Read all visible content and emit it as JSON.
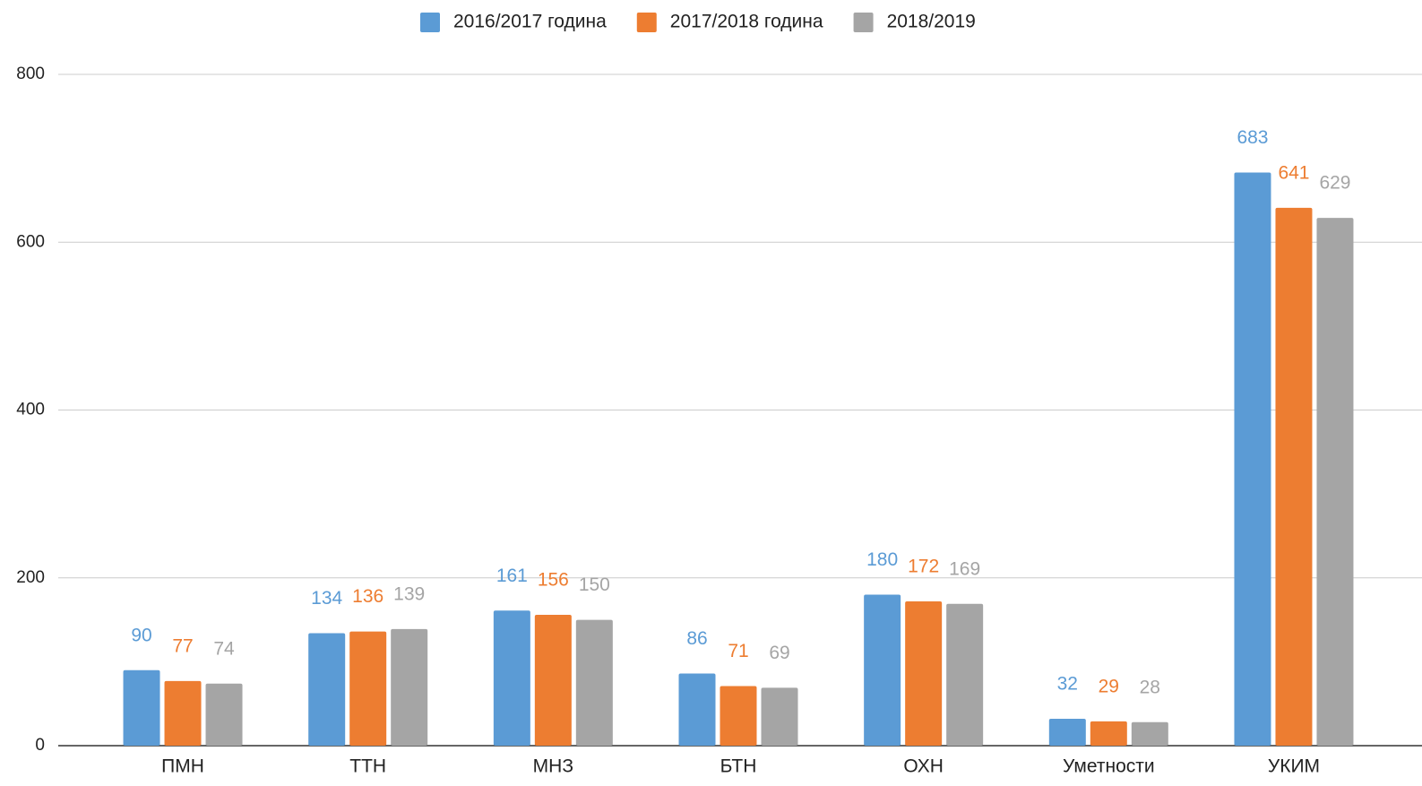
{
  "chart_data": {
    "type": "bar",
    "categories": [
      "ПМН",
      "ТТН",
      "МНЗ",
      "БТН",
      "ОХН",
      "Уметности",
      "УКИМ"
    ],
    "series": [
      {
        "name": "2016/2017 година",
        "color": "#5b9bd5",
        "values": [
          90,
          134,
          161,
          86,
          180,
          32,
          683
        ]
      },
      {
        "name": "2017/2018 година",
        "color": "#ed7d31",
        "values": [
          77,
          136,
          156,
          71,
          172,
          29,
          641
        ]
      },
      {
        "name": "2018/2019",
        "color": "#a5a5a5",
        "values": [
          74,
          139,
          150,
          69,
          169,
          28,
          629
        ]
      }
    ],
    "ylim": [
      0,
      800
    ],
    "yticks": [
      0,
      200,
      400,
      600,
      800
    ],
    "grid": true,
    "legend": "top"
  }
}
